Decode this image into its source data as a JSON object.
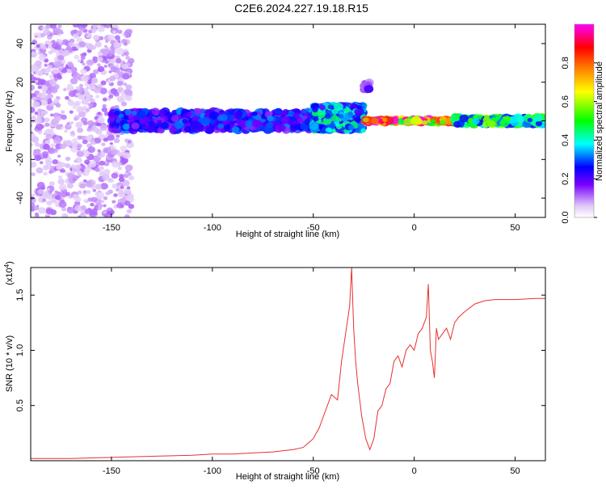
{
  "title": "C2E6.2024.227.19.18.R15",
  "colors": {
    "snr_line": "#e83030",
    "background": "#ffffff",
    "frame": "#000000"
  },
  "chart_data": [
    {
      "type": "heatmap",
      "xlabel": "Height of straight line (km)",
      "ylabel": "Frequency (Hz)",
      "xlim": [
        -190,
        65
      ],
      "ylim": [
        -50,
        50
      ],
      "xticks": [
        -150,
        -100,
        -50,
        0,
        50
      ],
      "yticks": [
        -40,
        -20,
        0,
        20,
        40
      ],
      "colorbar": {
        "label": "Normalized spectral amplitude",
        "range": [
          0,
          1
        ],
        "ticks": [
          "0.0",
          "0.2",
          "0.4",
          "0.6",
          "0.8"
        ],
        "colormap": [
          "#ffffff",
          "#e0c8f8",
          "#7a00ff",
          "#0000ff",
          "#00ffff",
          "#00ff00",
          "#ffff00",
          "#ff8000",
          "#ff0000",
          "#ff00ff"
        ]
      },
      "features": [
        {
          "x_range": [
            -190,
            -140
          ],
          "y_range": [
            -50,
            50
          ],
          "amplitude": 0.15
        },
        {
          "x_range": [
            -150,
            -50
          ],
          "y_range": [
            -5,
            5
          ],
          "amplitude": 0.35
        },
        {
          "x_range": [
            -50,
            -25
          ],
          "y_range": [
            -5,
            8
          ],
          "amplitude": 0.45
        },
        {
          "x_range": [
            -25,
            20
          ],
          "y_range": [
            -1,
            1
          ],
          "amplitude": 0.95
        },
        {
          "x_range": [
            20,
            65
          ],
          "y_range": [
            -2,
            2
          ],
          "amplitude": 0.55
        },
        {
          "x_range": [
            -25,
            -22
          ],
          "y_range": [
            16,
            20
          ],
          "amplitude": 0.25
        }
      ]
    },
    {
      "type": "line",
      "xlabel": "Height of straight line (km)",
      "ylabel": "SNR (10 * v/v)",
      "multiplier": "(x10",
      "multiplier_exp": "4",
      "multiplier_close": ")",
      "xlim": [
        -190,
        65
      ],
      "ylim": [
        0,
        1.75
      ],
      "xticks": [
        -150,
        -100,
        -50,
        0,
        50
      ],
      "yticks": [
        0.5,
        1.0,
        1.5
      ],
      "series": [
        {
          "x": [
            -190,
            -170,
            -150,
            -130,
            -110,
            -100,
            -90,
            -80,
            -70,
            -60,
            -55,
            -50,
            -47,
            -44,
            -41,
            -38,
            -36,
            -34,
            -32,
            -31,
            -30,
            -29,
            -28,
            -26,
            -24,
            -22,
            -20,
            -18,
            -16,
            -14,
            -12,
            -10,
            -8,
            -6,
            -4,
            -2,
            0,
            2,
            4,
            6,
            7,
            8,
            9,
            10,
            11,
            12,
            14,
            16,
            18,
            20,
            22,
            25,
            30,
            35,
            40,
            50,
            60,
            65
          ],
          "y": [
            0.02,
            0.02,
            0.03,
            0.04,
            0.05,
            0.06,
            0.06,
            0.07,
            0.08,
            0.1,
            0.12,
            0.2,
            0.3,
            0.45,
            0.6,
            0.55,
            0.9,
            1.15,
            1.4,
            1.75,
            1.2,
            0.9,
            0.7,
            0.4,
            0.2,
            0.1,
            0.2,
            0.45,
            0.5,
            0.65,
            0.7,
            0.9,
            0.95,
            0.85,
            1.0,
            1.05,
            1.0,
            1.15,
            1.2,
            1.3,
            1.6,
            1.0,
            0.9,
            0.75,
            1.2,
            1.1,
            1.15,
            1.2,
            1.1,
            1.25,
            1.3,
            1.35,
            1.42,
            1.45,
            1.46,
            1.46,
            1.47,
            1.47
          ]
        }
      ]
    }
  ]
}
